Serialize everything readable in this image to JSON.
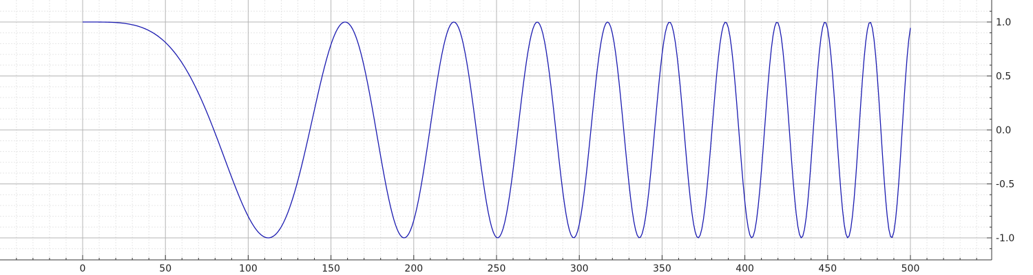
{
  "chart_data": {
    "type": "line",
    "title": "",
    "xlabel": "",
    "ylabel": "",
    "xlim": [
      -50,
      550
    ],
    "ylim": [
      -1.1,
      1.1
    ],
    "x_ticks": [
      0,
      50,
      100,
      150,
      200,
      250,
      300,
      350,
      400,
      450,
      500
    ],
    "x_tick_labels": [
      "0",
      "50",
      "100",
      "150",
      "200",
      "250",
      "300",
      "350",
      "400",
      "450",
      "500"
    ],
    "y_ticks": [
      1.0,
      0.5,
      0.0,
      -0.5,
      -1.0
    ],
    "y_tick_labels": [
      "1.0",
      "0.5",
      "0.0",
      "-0.5",
      "-1.0"
    ],
    "y_axis_side": "right",
    "grid": true,
    "colors": {
      "line": "#1a1ab0",
      "grid_major": "#b4b4b4",
      "grid_minor": "#e6e6e6",
      "axis": "#333333"
    },
    "series": [
      {
        "name": "cos(x^2 / 4000)",
        "formula": "y = cos(x*x/4000)",
        "x_start": 0,
        "x_end": 500,
        "x_step": 1,
        "color": "#1a1ab0"
      }
    ]
  }
}
